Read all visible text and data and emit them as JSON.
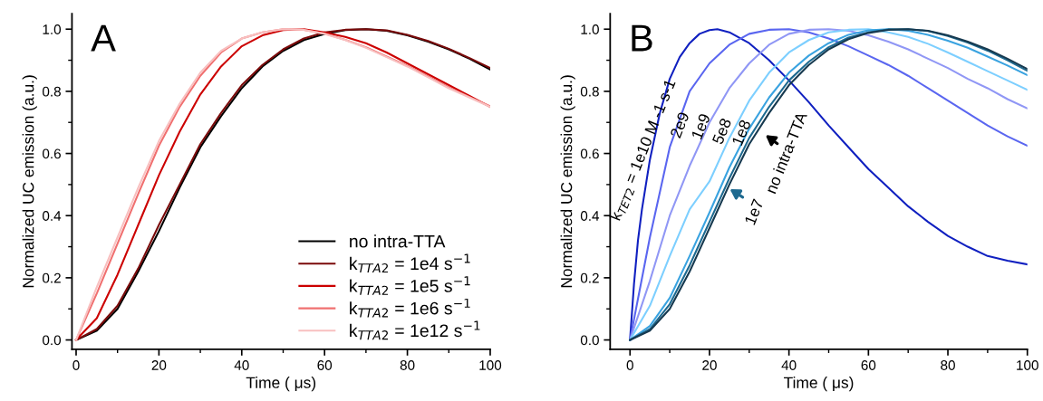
{
  "chart_data": [
    {
      "type": "line",
      "xlabel": "Time ( μs)",
      "ylabel": "Normalized UC emission (a.u.)",
      "annotations": [
        "A"
      ],
      "x": [
        0,
        5,
        10,
        15,
        20,
        25,
        30,
        35,
        40,
        45,
        50,
        55,
        60,
        65,
        70,
        75,
        80,
        85,
        90,
        95,
        100
      ],
      "xlim": [
        -1,
        100
      ],
      "ylim": [
        -0.03,
        1.05
      ],
      "xticks": [
        0,
        20,
        40,
        60,
        80,
        100
      ],
      "yticks": [
        {
          "value": 0,
          "label": "0.0"
        },
        {
          "value": 0.2,
          "label": "0.2"
        },
        {
          "value": 0.4,
          "label": "0.4"
        },
        {
          "value": 0.6,
          "label": "0.6"
        },
        {
          "value": 0.8,
          "label": "0.8"
        },
        {
          "value": 1,
          "label": "1.0"
        }
      ],
      "legend": "lower right",
      "grid": false,
      "line_style": "solid",
      "marker": "none",
      "series": [
        {
          "name": "no intra-TTA",
          "color": "#000000",
          "values": [
            0,
            0.03,
            0.1,
            0.22,
            0.35,
            0.49,
            0.62,
            0.72,
            0.81,
            0.88,
            0.93,
            0.965,
            0.985,
            0.997,
            1.0,
            0.995,
            0.98,
            0.96,
            0.935,
            0.905,
            0.87
          ]
        },
        {
          "name": "k$_{TTA2}$ = 1e4 s$^{−1}$",
          "color": "#7a0a0a",
          "values": [
            0,
            0.035,
            0.11,
            0.23,
            0.37,
            0.5,
            0.63,
            0.73,
            0.82,
            0.885,
            0.935,
            0.97,
            0.99,
            0.998,
            1.0,
            0.996,
            0.982,
            0.962,
            0.937,
            0.907,
            0.875
          ]
        },
        {
          "name": "k$_{TTA2}$ = 1e5 s$^{−1}$",
          "color": "#cc0000",
          "values": [
            0,
            0.07,
            0.21,
            0.37,
            0.53,
            0.67,
            0.79,
            0.88,
            0.945,
            0.98,
            0.997,
            1.0,
            0.99,
            0.975,
            0.955,
            0.925,
            0.89,
            0.855,
            0.82,
            0.785,
            0.75
          ]
        },
        {
          "name": "k$_{TTA2}$ = 1e6 s$^{−1}$",
          "color": "#f07070",
          "values": [
            0,
            0.15,
            0.31,
            0.47,
            0.625,
            0.75,
            0.85,
            0.925,
            0.97,
            0.99,
            1.0,
            0.998,
            0.986,
            0.966,
            0.942,
            0.912,
            0.882,
            0.848,
            0.813,
            0.782,
            0.752
          ]
        },
        {
          "name": "k$_{TTA2}$ = 1e12 s$^{−1}$",
          "color": "#f8c0c0",
          "values": [
            0,
            0.17,
            0.33,
            0.49,
            0.64,
            0.76,
            0.86,
            0.93,
            0.97,
            0.99,
            1.0,
            0.998,
            0.985,
            0.965,
            0.94,
            0.91,
            0.88,
            0.845,
            0.81,
            0.78,
            0.75
          ]
        }
      ]
    },
    {
      "type": "line",
      "xlabel": "Time ( μs)",
      "ylabel": "Normalized UC emission (a.u.)",
      "annotations": [
        "B"
      ],
      "x": [
        0,
        5,
        10,
        15,
        20,
        25,
        30,
        35,
        40,
        45,
        50,
        55,
        60,
        65,
        70,
        75,
        80,
        85,
        90,
        95,
        100
      ],
      "xlim": [
        -5,
        100
      ],
      "ylim": [
        -0.03,
        1.05
      ],
      "xticks": [
        0,
        20,
        40,
        60,
        80,
        100
      ],
      "yticks": [
        {
          "value": 0,
          "label": "0.0"
        },
        {
          "value": 0.2,
          "label": "0.2"
        },
        {
          "value": 0.4,
          "label": "0.4"
        },
        {
          "value": 0.6,
          "label": "0.6"
        },
        {
          "value": 0.8,
          "label": "0.8"
        },
        {
          "value": 1,
          "label": "1.0"
        }
      ],
      "grid": false,
      "line_style": "solid",
      "marker": "none",
      "series": [
        {
          "name": "k$_{TET2}$ = 1e10 M -1 s-1",
          "color": "#1020c0",
          "x": [
            0,
            1,
            2,
            3,
            5,
            7.5,
            10,
            12.5,
            15,
            17.5,
            20,
            22,
            25,
            30,
            35,
            40,
            45,
            50,
            55,
            60,
            65,
            70,
            75,
            80,
            85,
            90,
            95,
            100
          ],
          "values": [
            0,
            0.18,
            0.32,
            0.42,
            0.58,
            0.73,
            0.84,
            0.91,
            0.955,
            0.985,
            0.997,
            1.0,
            0.99,
            0.955,
            0.9,
            0.835,
            0.765,
            0.69,
            0.62,
            0.55,
            0.49,
            0.43,
            0.38,
            0.335,
            0.3,
            0.27,
            0.255,
            0.243
          ]
        },
        {
          "name": "2e9",
          "color": "#5a66f0",
          "values": [
            0,
            0.33,
            0.62,
            0.8,
            0.89,
            0.95,
            0.985,
            0.998,
            1.0,
            0.99,
            0.97,
            0.945,
            0.915,
            0.885,
            0.85,
            0.81,
            0.77,
            0.73,
            0.69,
            0.655,
            0.625
          ]
        },
        {
          "name": "1e9",
          "color": "#9097f5",
          "values": [
            0,
            0.19,
            0.4,
            0.56,
            0.7,
            0.81,
            0.89,
            0.95,
            0.985,
            0.998,
            1.0,
            0.995,
            0.98,
            0.96,
            0.935,
            0.905,
            0.875,
            0.84,
            0.81,
            0.775,
            0.745
          ]
        },
        {
          "name": "5e8",
          "color": "#7dcfff",
          "values": [
            0,
            0.11,
            0.27,
            0.42,
            0.51,
            0.65,
            0.77,
            0.86,
            0.925,
            0.965,
            0.99,
            0.998,
            1.0,
            0.99,
            0.975,
            0.953,
            0.925,
            0.895,
            0.865,
            0.835,
            0.805
          ]
        },
        {
          "name": "1e8",
          "color": "#3aa3e0",
          "values": [
            0,
            0.045,
            0.135,
            0.27,
            0.41,
            0.555,
            0.68,
            0.78,
            0.86,
            0.915,
            0.955,
            0.982,
            0.996,
            1.0,
            0.995,
            0.982,
            0.963,
            0.94,
            0.912,
            0.883,
            0.852
          ]
        },
        {
          "name": "1e7",
          "color": "#1e6a90",
          "values": [
            0,
            0.035,
            0.115,
            0.24,
            0.38,
            0.52,
            0.65,
            0.75,
            0.835,
            0.895,
            0.942,
            0.973,
            0.99,
            0.999,
            1.0,
            0.994,
            0.978,
            0.957,
            0.931,
            0.9,
            0.866
          ]
        },
        {
          "name": "no intra-TTA",
          "color": "#173a50",
          "values": [
            0,
            0.03,
            0.1,
            0.22,
            0.36,
            0.5,
            0.63,
            0.73,
            0.82,
            0.885,
            0.935,
            0.968,
            0.988,
            0.998,
            1.0,
            0.995,
            0.98,
            0.96,
            0.935,
            0.905,
            0.872
          ]
        }
      ]
    }
  ]
}
